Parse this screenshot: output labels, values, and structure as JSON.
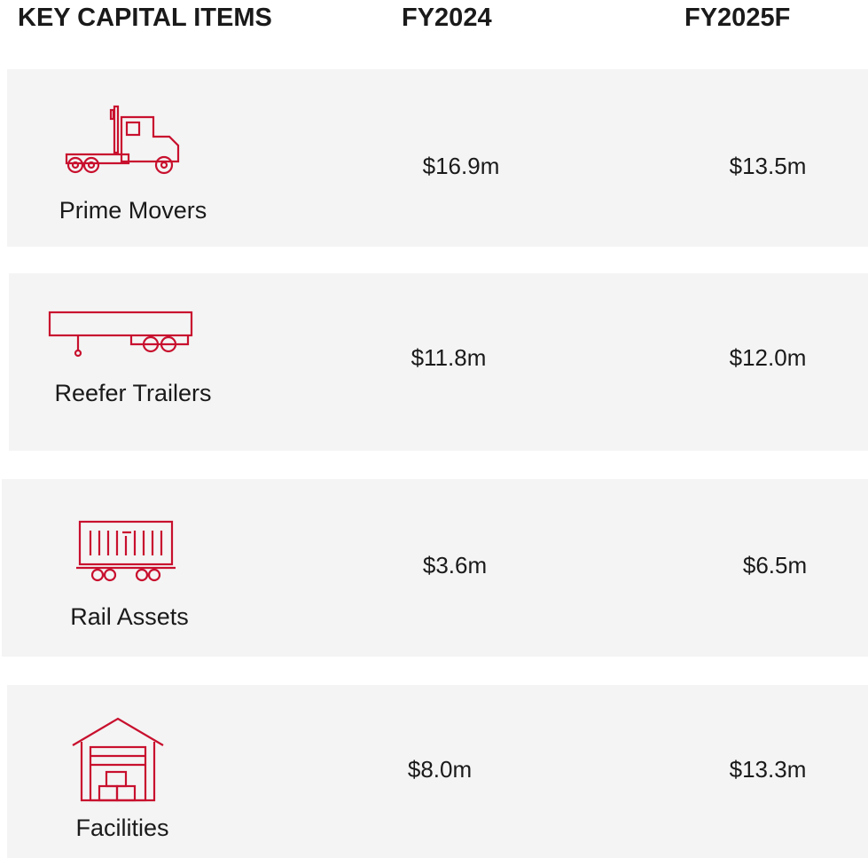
{
  "header": {
    "columns": [
      "KEY CAPITAL ITEMS",
      "FY2024",
      "FY2025F"
    ]
  },
  "rows": [
    {
      "label": "Prime Movers",
      "fy2024": "$16.9m",
      "fy2025f": "$13.5m"
    },
    {
      "label": "Reefer Trailers",
      "fy2024": "$11.8m",
      "fy2025f": "$12.0m"
    },
    {
      "label": "Rail Assets",
      "fy2024": "$3.6m",
      "fy2025f": "$6.5m"
    },
    {
      "label": "Facilities",
      "fy2024": "$8.0m",
      "fy2025f": "$13.3m"
    }
  ]
}
